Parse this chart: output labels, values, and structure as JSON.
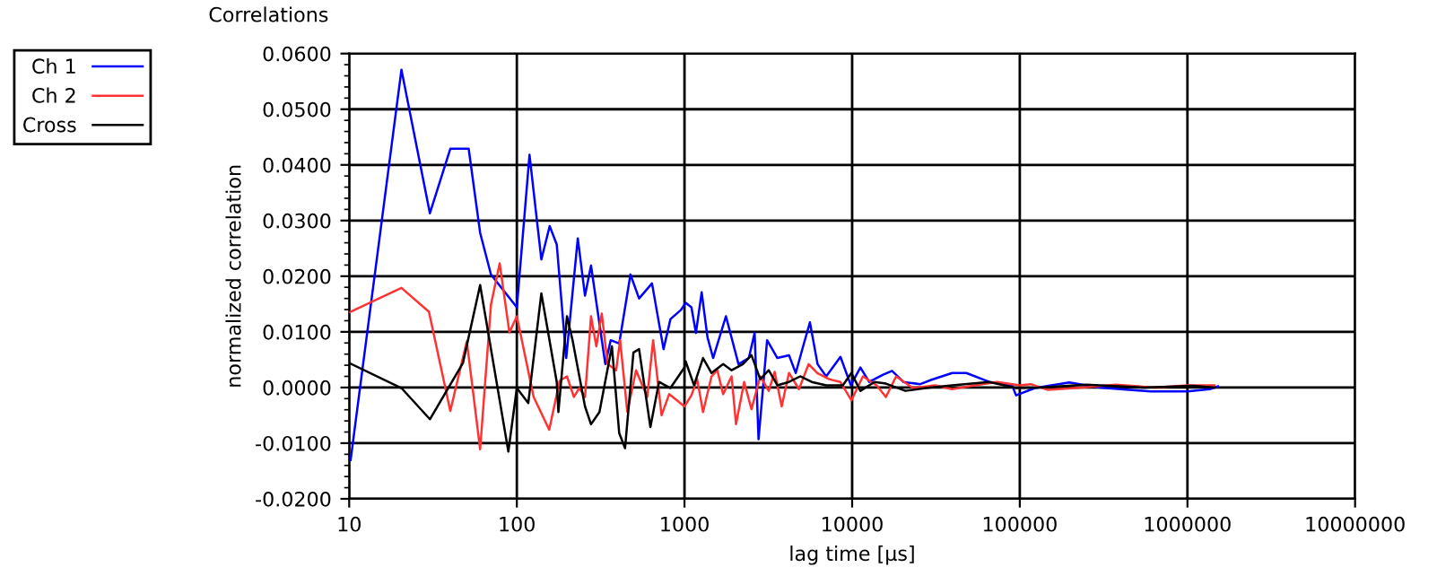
{
  "chart_data": {
    "type": "line",
    "title": "Correlations",
    "xlabel": "lag time [µs]",
    "ylabel": "normalized correlation",
    "log": "x",
    "grid": true,
    "legend": "top left",
    "marker": "none",
    "line_style": "solid",
    "xlim": [
      10,
      10000000
    ],
    "xticks": [
      10,
      100,
      1000,
      10000,
      100000,
      1000000,
      10000000
    ],
    "ylim": [
      -0.02,
      0.06
    ],
    "yticks": [
      {
        "value": -0.02,
        "label": "-0.0200"
      },
      {
        "value": -0.01,
        "label": "-0.0100"
      },
      {
        "value": 0,
        "label": "0.0000"
      },
      {
        "value": 0.01,
        "label": "0.0100"
      },
      {
        "value": 0.02,
        "label": "0.0200"
      },
      {
        "value": 0.03,
        "label": "0.0300"
      },
      {
        "value": 0.04,
        "label": "0.0400"
      },
      {
        "value": 0.05,
        "label": "0.0500"
      },
      {
        "value": 0.06,
        "label": "0.0600"
      }
    ],
    "series": [
      {
        "name": "Ch 1",
        "color": "#0000ff",
        "x": [
          10.2,
          20.5,
          30.3,
          40.1,
          51.6,
          60.4,
          70.1,
          100,
          119,
          140,
          157,
          173,
          197,
          231,
          255,
          277,
          337,
          363,
          408,
          476,
          536,
          640,
          750,
          825,
          950,
          1016,
          1100,
          1170,
          1266,
          1372,
          1482,
          1767,
          2100,
          2420,
          2620,
          2765,
          3110,
          3580,
          4200,
          4610,
          5100,
          5600,
          6220,
          7000,
          8520,
          9820,
          11200,
          12640,
          15300,
          17300,
          20200,
          25500,
          29800,
          39500,
          48000,
          65800,
          90000,
          95000,
          123000,
          197000,
          300000,
          600000,
          1000000,
          1360000,
          1520000
        ],
        "values": [
          -0.013,
          0.0571,
          0.0313,
          0.0429,
          0.0429,
          0.0278,
          0.0203,
          0.0144,
          0.0418,
          0.023,
          0.029,
          0.0257,
          0.0053,
          0.0268,
          0.0165,
          0.0219,
          0.0042,
          0.0085,
          0.0079,
          0.0203,
          0.016,
          0.0187,
          0.0069,
          0.0123,
          0.0139,
          0.0152,
          0.0144,
          0.0098,
          0.0171,
          0.009,
          0.0053,
          0.0128,
          0.0042,
          0.0053,
          0.0098,
          -0.0093,
          0.0085,
          0.0053,
          0.0058,
          0.0026,
          0.0074,
          0.0117,
          0.0042,
          0.002,
          0.0055,
          0.0004,
          0.0036,
          0.001,
          0.0023,
          0.003,
          0.001,
          0.0006,
          0.0014,
          0.0026,
          0.0026,
          0.001,
          0.0004,
          -0.0014,
          -0.0001,
          0.0009,
          0.0,
          -0.0007,
          -0.0007,
          -0.0003,
          0.0002
        ]
      },
      {
        "name": "Ch 2",
        "color": "#ff3333",
        "x": [
          10,
          20.5,
          29.9,
          40.1,
          50.3,
          60.4,
          70.1,
          79,
          90.3,
          100,
          126,
          156,
          180,
          199,
          219,
          236,
          255,
          277,
          298,
          321,
          348,
          391,
          413,
          456,
          514,
          600,
          650,
          730,
          810,
          1000,
          1100,
          1190,
          1290,
          1450,
          1570,
          1700,
          1910,
          2030,
          2270,
          2510,
          2830,
          3180,
          3450,
          3800,
          4200,
          4820,
          5500,
          6200,
          7300,
          8500,
          9900,
          11600,
          14000,
          15900,
          18300,
          23000,
          31300,
          39400,
          54000,
          73000,
          100000,
          116000,
          146000,
          234000,
          373000,
          640000,
          1000000,
          1450000
        ],
        "values": [
          0.0135,
          0.0179,
          0.0136,
          -0.0042,
          0.0083,
          -0.0111,
          0.0149,
          0.0223,
          0.0099,
          0.0128,
          -0.0017,
          -0.0076,
          0.0012,
          0.002,
          -0.0017,
          -0.0001,
          -0.0017,
          0.0128,
          0.0074,
          0.0133,
          0.0042,
          0.0031,
          0.0085,
          -0.0044,
          0.0031,
          -0.0017,
          0.0085,
          -0.005,
          -0.0012,
          -0.0034,
          -0.0014,
          0.0015,
          -0.0044,
          0.002,
          0.0031,
          -0.0012,
          0.002,
          -0.0066,
          0.001,
          -0.0039,
          0.002,
          -0.0006,
          0.0028,
          -0.0034,
          0.0026,
          -0.0003,
          0.0042,
          0.0026,
          0.0015,
          0.001,
          -0.0023,
          0.002,
          0.0004,
          -0.0017,
          0.002,
          -0.0001,
          0.0004,
          -0.0003,
          0.0004,
          0.001,
          0.0004,
          0.0006,
          -0.0004,
          0.0,
          0.0005,
          0.0,
          0.0004,
          0.0004
        ]
      },
      {
        "name": "Cross",
        "color": "#000000",
        "x": [
          10,
          20.5,
          30.3,
          47.7,
          60.4,
          89,
          100,
          117,
          140,
          173,
          177,
          199,
          215,
          255,
          277,
          311,
          369,
          408,
          442,
          496,
          536,
          626,
          705,
          824,
          1000,
          1016,
          1140,
          1290,
          1450,
          1700,
          1910,
          2230,
          2510,
          2830,
          3180,
          3580,
          4200,
          4900,
          5740,
          7000,
          8800,
          9900,
          11200,
          13600,
          15900,
          20800,
          27500,
          39400,
          65800,
          95000,
          128000,
          250000,
          550000,
          1080000,
          1450000
        ],
        "values": [
          0.0044,
          -0.0001,
          -0.0057,
          0.0044,
          0.0184,
          -0.0115,
          -0.0001,
          -0.0028,
          0.0169,
          0.001,
          -0.0044,
          0.0128,
          0.0085,
          -0.0034,
          -0.0066,
          -0.0044,
          0.0074,
          -0.0082,
          -0.0109,
          0.0063,
          0.0069,
          -0.0071,
          0.001,
          -0.0001,
          0.0036,
          0.0047,
          0.0004,
          0.0053,
          0.0026,
          0.0042,
          0.0031,
          0.0042,
          0.0058,
          0.0015,
          0.0031,
          0.0004,
          0.001,
          0.002,
          0.001,
          0.0004,
          0.0004,
          0.0026,
          -0.0006,
          0.001,
          0.0007,
          -0.0006,
          -0.0001,
          0.0004,
          0.001,
          -0.0001,
          0.0,
          0.0005,
          0.0,
          0.0003,
          0.0
        ]
      }
    ]
  }
}
